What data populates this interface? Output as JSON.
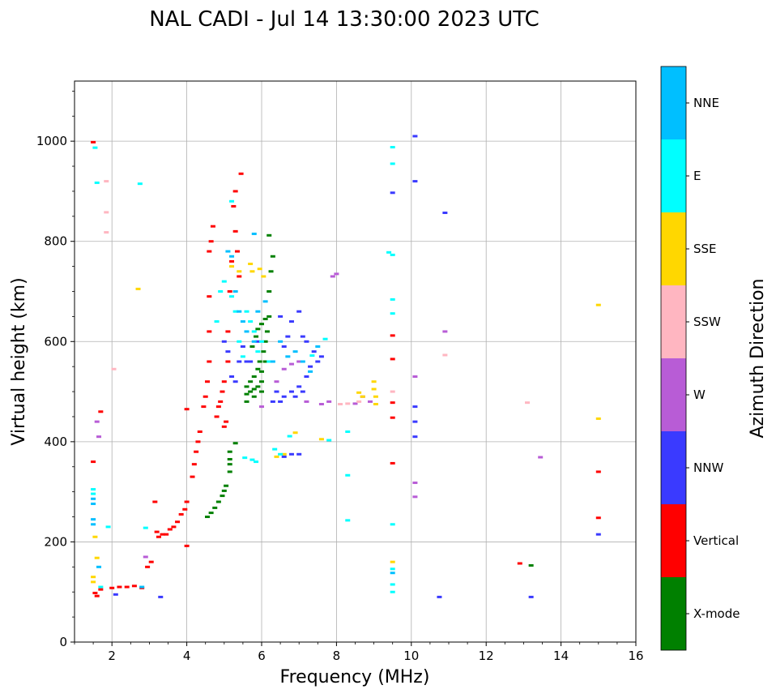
{
  "chart_data": {
    "type": "scatter",
    "title": "NAL CADI - Jul 14 13:30:00 2023 UTC",
    "xlabel": "Frequency (MHz)",
    "ylabel": "Virtual height (km)",
    "xlim": [
      1,
      16
    ],
    "ylim": [
      0,
      1120
    ],
    "xticks": [
      2,
      4,
      6,
      8,
      10,
      12,
      14,
      16
    ],
    "yticks": [
      0,
      200,
      400,
      600,
      800,
      1000
    ],
    "grid": true,
    "colorbar": {
      "label": "Azimuth Direction",
      "categories": [
        "X-mode",
        "Vertical",
        "NNW",
        "W",
        "SSW",
        "SSE",
        "E",
        "NNE"
      ],
      "colors": [
        "#008000",
        "#ff0000",
        "#3a3aff",
        "#b85cd6",
        "#ffb6c1",
        "#ffd700",
        "#00ffff",
        "#00bfff"
      ]
    },
    "series": [
      {
        "name": "X-mode",
        "points": [
          [
            4.55,
            250
          ],
          [
            4.65,
            258
          ],
          [
            4.75,
            268
          ],
          [
            4.85,
            280
          ],
          [
            4.95,
            292
          ],
          [
            5.0,
            302
          ],
          [
            5.05,
            312
          ],
          [
            5.15,
            340
          ],
          [
            5.15,
            355
          ],
          [
            5.15,
            365
          ],
          [
            5.15,
            380
          ],
          [
            5.3,
            397
          ],
          [
            5.6,
            480
          ],
          [
            5.6,
            495
          ],
          [
            5.6,
            510
          ],
          [
            5.7,
            500
          ],
          [
            5.7,
            520
          ],
          [
            5.8,
            490
          ],
          [
            5.8,
            505
          ],
          [
            5.8,
            530
          ],
          [
            5.9,
            510
          ],
          [
            5.9,
            545
          ],
          [
            5.95,
            560
          ],
          [
            6.0,
            500
          ],
          [
            6.0,
            520
          ],
          [
            6.0,
            540
          ],
          [
            6.05,
            580
          ],
          [
            6.1,
            560
          ],
          [
            6.1,
            600
          ],
          [
            6.15,
            620
          ],
          [
            6.2,
            650
          ],
          [
            6.2,
            700
          ],
          [
            6.25,
            740
          ],
          [
            6.3,
            770
          ],
          [
            6.2,
            812
          ],
          [
            5.75,
            590
          ],
          [
            5.85,
            610
          ],
          [
            5.9,
            625
          ],
          [
            6.0,
            635
          ],
          [
            6.1,
            645
          ],
          [
            13.2,
            153
          ]
        ]
      },
      {
        "name": "Vertical",
        "points": [
          [
            1.5,
            360
          ],
          [
            1.5,
            998
          ],
          [
            1.55,
            98
          ],
          [
            1.6,
            92
          ],
          [
            1.7,
            105
          ],
          [
            2.0,
            108
          ],
          [
            2.2,
            110
          ],
          [
            2.4,
            110
          ],
          [
            2.6,
            112
          ],
          [
            2.8,
            108
          ],
          [
            2.95,
            150
          ],
          [
            3.05,
            160
          ],
          [
            3.15,
            280
          ],
          [
            3.2,
            220
          ],
          [
            3.25,
            210
          ],
          [
            3.35,
            215
          ],
          [
            3.45,
            215
          ],
          [
            3.55,
            225
          ],
          [
            3.65,
            230
          ],
          [
            3.75,
            240
          ],
          [
            3.85,
            255
          ],
          [
            3.95,
            265
          ],
          [
            4.0,
            280
          ],
          [
            4.0,
            192
          ],
          [
            4.0,
            465
          ],
          [
            4.15,
            330
          ],
          [
            4.2,
            355
          ],
          [
            4.25,
            380
          ],
          [
            4.3,
            400
          ],
          [
            4.35,
            420
          ],
          [
            4.45,
            470
          ],
          [
            4.5,
            490
          ],
          [
            4.55,
            520
          ],
          [
            4.6,
            560
          ],
          [
            4.6,
            620
          ],
          [
            4.6,
            690
          ],
          [
            4.6,
            780
          ],
          [
            4.65,
            800
          ],
          [
            4.7,
            830
          ],
          [
            4.8,
            450
          ],
          [
            4.85,
            470
          ],
          [
            4.9,
            480
          ],
          [
            4.95,
            500
          ],
          [
            5.0,
            520
          ],
          [
            5.0,
            430
          ],
          [
            5.05,
            440
          ],
          [
            5.1,
            560
          ],
          [
            5.1,
            620
          ],
          [
            5.15,
            700
          ],
          [
            5.2,
            760
          ],
          [
            5.25,
            870
          ],
          [
            5.3,
            820
          ],
          [
            5.3,
            900
          ],
          [
            5.35,
            780
          ],
          [
            5.4,
            730
          ],
          [
            5.45,
            935
          ],
          [
            9.5,
            612
          ],
          [
            9.5,
            565
          ],
          [
            9.5,
            478
          ],
          [
            9.5,
            448
          ],
          [
            9.5,
            357
          ],
          [
            12.9,
            157
          ],
          [
            15.0,
            340
          ],
          [
            15.0,
            248
          ],
          [
            1.7,
            460
          ]
        ]
      },
      {
        "name": "NNW",
        "points": [
          [
            2.1,
            95
          ],
          [
            3.3,
            90
          ],
          [
            5.0,
            600
          ],
          [
            5.1,
            580
          ],
          [
            5.2,
            530
          ],
          [
            5.3,
            520
          ],
          [
            5.4,
            560
          ],
          [
            5.5,
            590
          ],
          [
            5.6,
            560
          ],
          [
            5.7,
            560
          ],
          [
            5.9,
            600
          ],
          [
            6.3,
            480
          ],
          [
            6.4,
            500
          ],
          [
            6.5,
            480
          ],
          [
            6.6,
            490
          ],
          [
            6.8,
            500
          ],
          [
            6.9,
            490
          ],
          [
            7.0,
            510
          ],
          [
            7.1,
            500
          ],
          [
            7.2,
            530
          ],
          [
            7.3,
            550
          ],
          [
            7.4,
            580
          ],
          [
            7.5,
            560
          ],
          [
            7.6,
            570
          ],
          [
            6.6,
            370
          ],
          [
            6.8,
            375
          ],
          [
            7.0,
            375
          ],
          [
            6.5,
            650
          ],
          [
            6.6,
            590
          ],
          [
            6.7,
            610
          ],
          [
            6.8,
            640
          ],
          [
            7.0,
            660
          ],
          [
            7.1,
            610
          ],
          [
            7.2,
            600
          ],
          [
            10.1,
            1010
          ],
          [
            10.1,
            920
          ],
          [
            9.5,
            897
          ],
          [
            10.9,
            857
          ],
          [
            10.1,
            470
          ],
          [
            10.1,
            440
          ],
          [
            10.1,
            410
          ],
          [
            10.75,
            90
          ],
          [
            13.2,
            90
          ],
          [
            15.0,
            215
          ]
        ]
      },
      {
        "name": "W",
        "points": [
          [
            1.6,
            440
          ],
          [
            1.65,
            410
          ],
          [
            6.0,
            470
          ],
          [
            6.4,
            520
          ],
          [
            6.6,
            545
          ],
          [
            6.8,
            555
          ],
          [
            7.0,
            560
          ],
          [
            7.2,
            480
          ],
          [
            7.6,
            475
          ],
          [
            7.8,
            480
          ],
          [
            8.0,
            735
          ],
          [
            7.9,
            730
          ],
          [
            8.5,
            476
          ],
          [
            8.7,
            490
          ],
          [
            8.9,
            480
          ],
          [
            10.1,
            530
          ],
          [
            10.1,
            318
          ],
          [
            10.1,
            290
          ],
          [
            10.9,
            620
          ],
          [
            13.45,
            369
          ],
          [
            2.9,
            170
          ]
        ]
      },
      {
        "name": "SSW",
        "points": [
          [
            1.85,
            920
          ],
          [
            1.85,
            858
          ],
          [
            1.85,
            818
          ],
          [
            2.05,
            545
          ],
          [
            8.1,
            475
          ],
          [
            8.3,
            476
          ],
          [
            8.6,
            480
          ],
          [
            9.5,
            500
          ],
          [
            10.9,
            573
          ],
          [
            13.1,
            478
          ]
        ]
      },
      {
        "name": "SSE",
        "points": [
          [
            1.55,
            210
          ],
          [
            1.5,
            130
          ],
          [
            1.5,
            120
          ],
          [
            1.6,
            168
          ],
          [
            2.7,
            705
          ],
          [
            5.2,
            750
          ],
          [
            5.4,
            740
          ],
          [
            5.7,
            755
          ],
          [
            5.75,
            740
          ],
          [
            5.95,
            745
          ],
          [
            6.05,
            730
          ],
          [
            6.4,
            370
          ],
          [
            6.6,
            375
          ],
          [
            6.9,
            418
          ],
          [
            7.6,
            405
          ],
          [
            8.6,
            498
          ],
          [
            8.7,
            490
          ],
          [
            9.0,
            520
          ],
          [
            9.0,
            505
          ],
          [
            9.05,
            490
          ],
          [
            9.05,
            475
          ],
          [
            9.5,
            160
          ],
          [
            15.0,
            673
          ],
          [
            15.0,
            446
          ]
        ]
      },
      {
        "name": "E",
        "points": [
          [
            1.5,
            305
          ],
          [
            1.5,
            296
          ],
          [
            1.55,
            987
          ],
          [
            1.6,
            917
          ],
          [
            1.9,
            230
          ],
          [
            1.7,
            110
          ],
          [
            2.75,
            915
          ],
          [
            2.9,
            228
          ],
          [
            4.8,
            640
          ],
          [
            4.9,
            700
          ],
          [
            5.0,
            720
          ],
          [
            5.2,
            690
          ],
          [
            5.3,
            660
          ],
          [
            5.2,
            880
          ],
          [
            5.4,
            600
          ],
          [
            5.5,
            570
          ],
          [
            5.6,
            660
          ],
          [
            5.7,
            640
          ],
          [
            5.8,
            620
          ],
          [
            5.9,
            580
          ],
          [
            6.0,
            600
          ],
          [
            6.2,
            560
          ],
          [
            5.55,
            368
          ],
          [
            5.75,
            364
          ],
          [
            5.85,
            360
          ],
          [
            6.35,
            385
          ],
          [
            6.5,
            375
          ],
          [
            6.75,
            411
          ],
          [
            7.35,
            572
          ],
          [
            7.7,
            605
          ],
          [
            7.8,
            403
          ],
          [
            8.3,
            420
          ],
          [
            8.3,
            333
          ],
          [
            8.3,
            243
          ],
          [
            9.5,
            988
          ],
          [
            9.5,
            955
          ],
          [
            9.4,
            778
          ],
          [
            9.5,
            773
          ],
          [
            9.5,
            684
          ],
          [
            9.5,
            656
          ],
          [
            9.5,
            235
          ],
          [
            9.5,
            146
          ],
          [
            9.5,
            115
          ],
          [
            9.5,
            100
          ]
        ]
      },
      {
        "name": "NNE",
        "points": [
          [
            1.5,
            286
          ],
          [
            1.5,
            276
          ],
          [
            1.5,
            245
          ],
          [
            1.5,
            235
          ],
          [
            1.65,
            150
          ],
          [
            5.1,
            780
          ],
          [
            5.2,
            770
          ],
          [
            5.3,
            700
          ],
          [
            5.4,
            660
          ],
          [
            5.5,
            640
          ],
          [
            5.6,
            620
          ],
          [
            5.8,
            600
          ],
          [
            5.9,
            660
          ],
          [
            6.1,
            680
          ],
          [
            6.3,
            560
          ],
          [
            6.5,
            600
          ],
          [
            6.7,
            570
          ],
          [
            6.9,
            580
          ],
          [
            7.1,
            560
          ],
          [
            7.3,
            540
          ],
          [
            7.5,
            590
          ],
          [
            5.8,
            815
          ],
          [
            2.8,
            110
          ],
          [
            9.5,
            138
          ]
        ]
      }
    ]
  }
}
